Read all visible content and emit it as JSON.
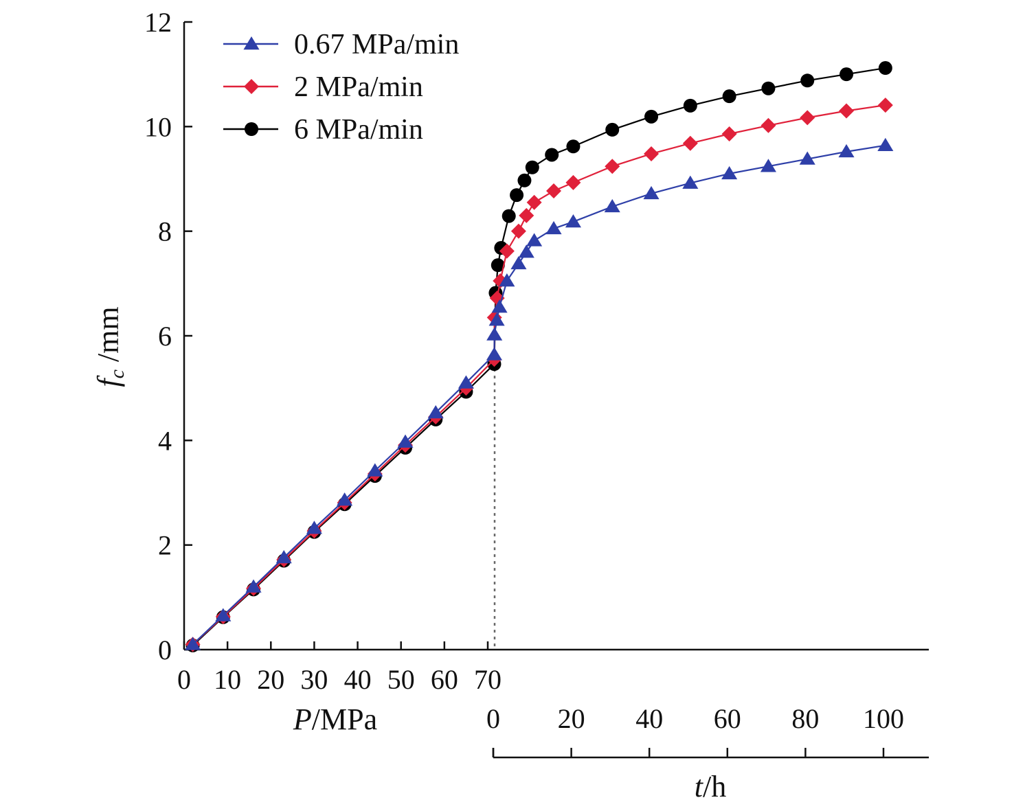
{
  "chart_data": {
    "type": "line",
    "title": "",
    "ylabel": {
      "var": "f",
      "sub": "c",
      "unit": " /mm"
    },
    "xlabel_left": {
      "var": "P",
      "unit": "/MPa"
    },
    "xlabel_right": {
      "var": "t",
      "unit": "/h"
    },
    "ylim": [
      0,
      12
    ],
    "yticks": [
      0,
      2,
      4,
      6,
      8,
      10,
      12
    ],
    "x_left_ticks": [
      0,
      10,
      20,
      30,
      40,
      50,
      60,
      70
    ],
    "x_left_range": [
      0,
      70
    ],
    "x_right_ticks": [
      0,
      20,
      40,
      60,
      80,
      100
    ],
    "x_right_range": [
      0,
      100
    ],
    "legend_position": "top-left",
    "grid": false,
    "series": [
      {
        "name": "0.67 MPa/min",
        "color": "#2e3fa8",
        "marker": "triangle",
        "loading": [
          [
            2,
            0.1
          ],
          [
            9,
            0.65
          ],
          [
            16,
            1.2
          ],
          [
            23,
            1.76
          ],
          [
            30,
            2.32
          ],
          [
            37,
            2.86
          ],
          [
            44,
            3.42
          ],
          [
            51,
            3.97
          ],
          [
            58,
            4.53
          ],
          [
            65,
            5.1
          ],
          [
            71.5,
            5.64
          ]
        ],
        "creep": [
          [
            0.3,
            6.02
          ],
          [
            0.9,
            6.3
          ],
          [
            1.6,
            6.55
          ],
          [
            3.5,
            7.05
          ],
          [
            6.5,
            7.38
          ],
          [
            8.5,
            7.6
          ],
          [
            10.5,
            7.82
          ],
          [
            15.5,
            8.05
          ],
          [
            20.5,
            8.18
          ],
          [
            30.5,
            8.47
          ],
          [
            40.5,
            8.72
          ],
          [
            50.5,
            8.92
          ],
          [
            60.5,
            9.1
          ],
          [
            70.5,
            9.24
          ],
          [
            80.5,
            9.38
          ],
          [
            90.5,
            9.52
          ],
          [
            100.5,
            9.64
          ]
        ]
      },
      {
        "name": "2 MPa/min",
        "color": "#e0213a",
        "marker": "diamond",
        "loading": [
          [
            2,
            0.1
          ],
          [
            9,
            0.63
          ],
          [
            16,
            1.17
          ],
          [
            23,
            1.72
          ],
          [
            30,
            2.27
          ],
          [
            37,
            2.81
          ],
          [
            44,
            3.36
          ],
          [
            51,
            3.91
          ],
          [
            58,
            4.45
          ],
          [
            65,
            5.0
          ],
          [
            71.5,
            5.55
          ]
        ],
        "creep": [
          [
            0.3,
            6.35
          ],
          [
            1.0,
            6.72
          ],
          [
            1.8,
            7.05
          ],
          [
            3.5,
            7.62
          ],
          [
            6.5,
            8.0
          ],
          [
            8.5,
            8.3
          ],
          [
            10.5,
            8.55
          ],
          [
            15.5,
            8.77
          ],
          [
            20.5,
            8.93
          ],
          [
            30.5,
            9.24
          ],
          [
            40.5,
            9.48
          ],
          [
            50.5,
            9.68
          ],
          [
            60.5,
            9.86
          ],
          [
            70.5,
            10.02
          ],
          [
            80.5,
            10.17
          ],
          [
            90.5,
            10.3
          ],
          [
            100.5,
            10.41
          ]
        ]
      },
      {
        "name": "6 MPa/min",
        "color": "#000000",
        "marker": "circle",
        "loading": [
          [
            2,
            0.08
          ],
          [
            9,
            0.62
          ],
          [
            16,
            1.15
          ],
          [
            23,
            1.7
          ],
          [
            30,
            2.25
          ],
          [
            37,
            2.78
          ],
          [
            44,
            3.32
          ],
          [
            51,
            3.86
          ],
          [
            58,
            4.4
          ],
          [
            65,
            4.93
          ],
          [
            71.5,
            5.46
          ]
        ],
        "creep": [
          [
            0.6,
            6.82
          ],
          [
            1.2,
            7.35
          ],
          [
            2.0,
            7.68
          ],
          [
            4.0,
            8.29
          ],
          [
            6.0,
            8.69
          ],
          [
            8.0,
            8.97
          ],
          [
            10.0,
            9.22
          ],
          [
            15.0,
            9.46
          ],
          [
            20.5,
            9.62
          ],
          [
            30.5,
            9.94
          ],
          [
            40.5,
            10.19
          ],
          [
            50.5,
            10.4
          ],
          [
            60.5,
            10.58
          ],
          [
            70.5,
            10.73
          ],
          [
            80.5,
            10.88
          ],
          [
            90.5,
            11.0
          ],
          [
            100.5,
            11.12
          ]
        ]
      }
    ]
  }
}
